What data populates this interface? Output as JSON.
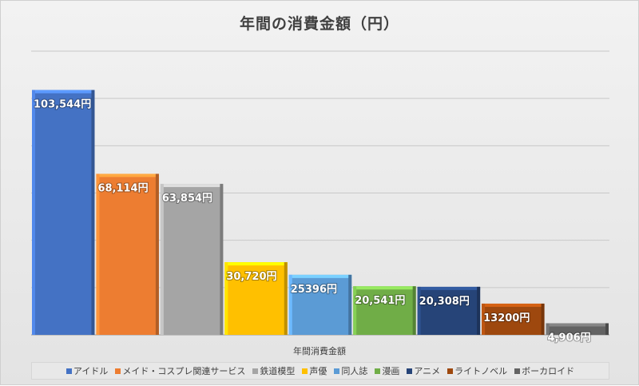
{
  "chart_data": {
    "type": "bar",
    "title": "年間の消費金額（円）",
    "xlabel": "年間消費金額",
    "ylabel": "",
    "ylim": [
      0,
      120000
    ],
    "grid": true,
    "legend_position": "bottom",
    "series": [
      {
        "name": "アイドル",
        "value": 103544,
        "label": "103,544円",
        "color": "#4472c4"
      },
      {
        "name": "メイド・コスプレ関連サービス",
        "value": 68114,
        "label": "68,114円",
        "color": "#ed7d31"
      },
      {
        "name": "鉄道模型",
        "value": 63854,
        "label": "63,854円",
        "color": "#a5a5a5"
      },
      {
        "name": "声優",
        "value": 30720,
        "label": "30,720円",
        "color": "#ffc000"
      },
      {
        "name": "同人誌",
        "value": 25396,
        "label": "25396円",
        "color": "#5b9bd5"
      },
      {
        "name": "漫画",
        "value": 20541,
        "label": "20,541円",
        "color": "#70ad47"
      },
      {
        "name": "アニメ",
        "value": 20308,
        "label": "20,308円",
        "color": "#264478"
      },
      {
        "name": "ライトノベル",
        "value": 13200,
        "label": "13200円",
        "color": "#9e480e"
      },
      {
        "name": "ボーカロイド",
        "value": 4906,
        "label": "4,906円",
        "color": "#636363"
      }
    ]
  }
}
